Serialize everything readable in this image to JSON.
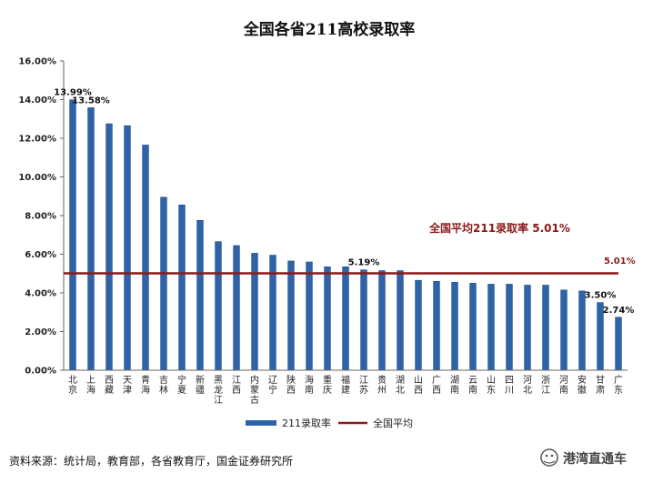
{
  "chart_data": {
    "type": "bar",
    "title": "全国各省211高校录取率",
    "categories": [
      "北京",
      "上海",
      "西藏",
      "天津",
      "青海",
      "吉林",
      "宁夏",
      "新疆",
      "黑龙江",
      "江西",
      "内蒙古",
      "辽宁",
      "陕西",
      "海南",
      "重庆",
      "福建",
      "江苏",
      "贵州",
      "湖北",
      "山西",
      "广西",
      "湖南",
      "云南",
      "山东",
      "四川",
      "河北",
      "浙江",
      "河南",
      "安徽",
      "甘肃",
      "广东"
    ],
    "series": [
      {
        "name": "211录取率",
        "type": "bar",
        "color": "#2e63a8",
        "values": [
          13.99,
          13.58,
          12.75,
          12.65,
          11.65,
          8.95,
          8.55,
          7.75,
          6.65,
          6.45,
          6.05,
          5.95,
          5.65,
          5.6,
          5.35,
          5.35,
          5.19,
          5.15,
          5.15,
          4.65,
          4.6,
          4.55,
          4.5,
          4.45,
          4.45,
          4.4,
          4.4,
          4.15,
          4.1,
          3.5,
          2.74
        ]
      },
      {
        "name": "全国平均",
        "type": "line",
        "color": "#8b1a1a",
        "value": 5.01
      }
    ],
    "data_labels": [
      {
        "category": "北京",
        "text": "13.99%"
      },
      {
        "category": "上海",
        "text": "13.58%"
      },
      {
        "category": "江苏",
        "text": "5.19%"
      },
      {
        "category": "甘肃",
        "text": "3.50%"
      },
      {
        "category": "广东",
        "text": "2.74%"
      }
    ],
    "average_annotation": "全国平均211录取率 5.01%",
    "average_end_label": "5.01%",
    "y_ticks": [
      "0.00%",
      "2.00%",
      "4.00%",
      "6.00%",
      "8.00%",
      "10.00%",
      "12.00%",
      "14.00%",
      "16.00%"
    ],
    "ylim": [
      0,
      16
    ],
    "ytick_step": 2,
    "xlabel": "",
    "ylabel": "",
    "grid": false,
    "legend_position": "bottom"
  },
  "source_note": "资料来源：统计局，教育部，各省教育厅，国金证券研究所",
  "watermark": "港湾直通车",
  "watermark_icon": "wechat-icon",
  "colors": {
    "bar": "#2e63a8",
    "bar_stroke": "#1d4a85",
    "average_line": "#8b1a1a",
    "axis": "#666666"
  }
}
